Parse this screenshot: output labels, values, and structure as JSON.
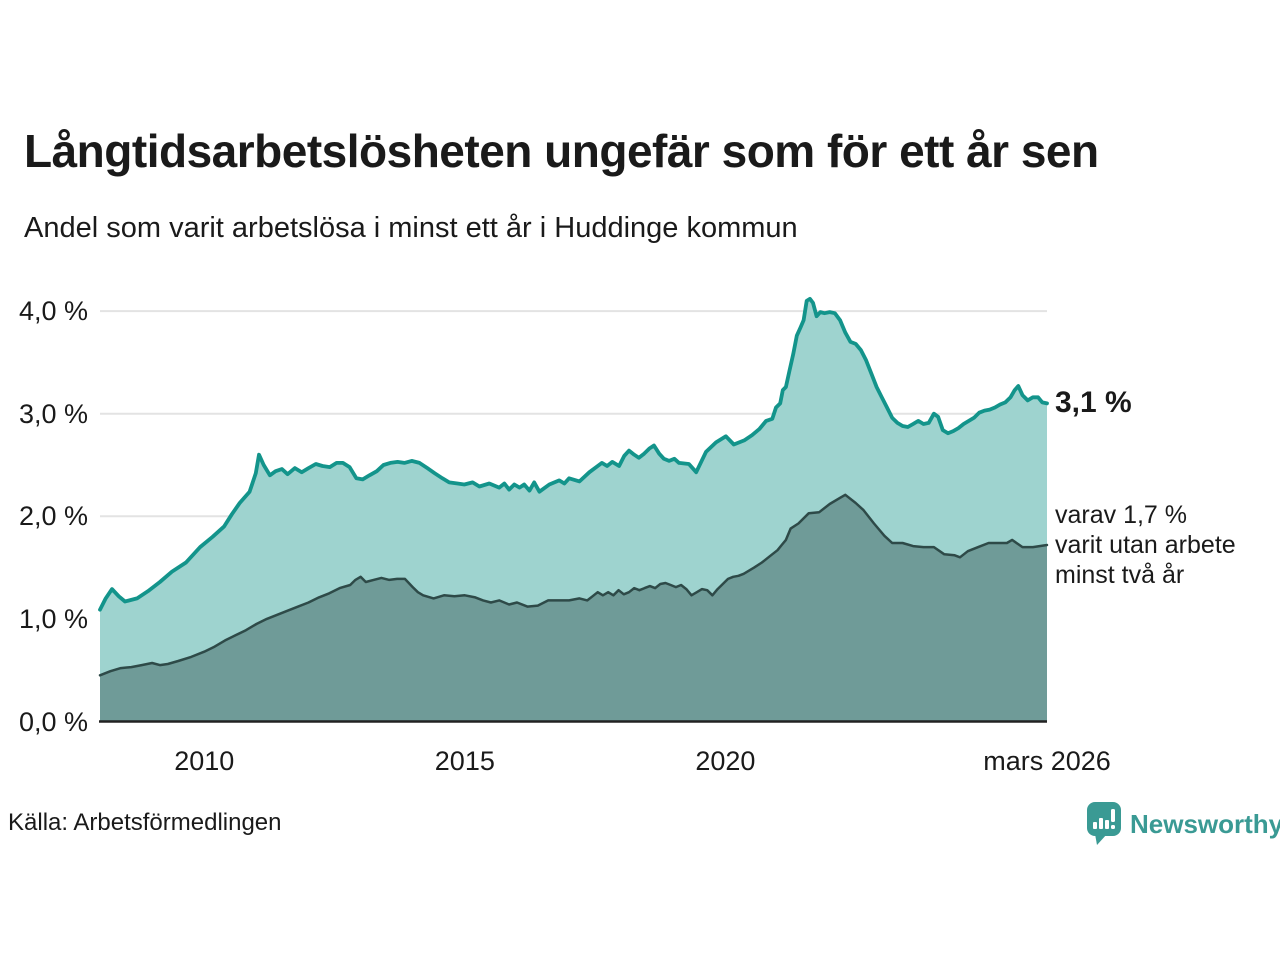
{
  "header": {
    "title": "Långtidsarbetslösheten ungefär som för ett år sen",
    "subtitle": "Andel som varit arbetslösa i minst ett år i Huddinge kommun"
  },
  "annotations": {
    "total_end_label": "3,1 %",
    "two_year_line1": "varav 1,7 %",
    "two_year_line2": "varit utan arbete",
    "two_year_line3": "minst två år"
  },
  "footer": {
    "source": "Källa: Arbetsförmedlingen",
    "brand": "Newsworthy",
    "brand_icon": "bar-chart-speech-bubble"
  },
  "colors": {
    "total_line": "#13948b",
    "total_fill": "#9ed3cf",
    "two_year_line": "#2e4a48",
    "two_year_fill": "#6f9b98",
    "grid": "#e3e3e3",
    "axis": "#222222",
    "text": "#1a1a1a",
    "brand_teal": "#3a9a94"
  },
  "chart_data": {
    "type": "area",
    "title": "Långtidsarbetslösheten ungefär som för ett år sen",
    "subtitle": "Andel som varit arbetslösa i minst ett år i Huddinge kommun",
    "xlabel": "",
    "ylabel": "",
    "unit": "%",
    "grid": true,
    "legend_position": "direct-labels-right",
    "x_domain": [
      2008.0,
      2026.17
    ],
    "ylim": [
      0,
      4.3
    ],
    "y_ticks": [
      {
        "value": 0,
        "label": "0,0 %"
      },
      {
        "value": 1,
        "label": "1,0 %"
      },
      {
        "value": 2,
        "label": "2,0 %"
      },
      {
        "value": 3,
        "label": "3,0 %"
      },
      {
        "value": 4,
        "label": "4,0 %"
      }
    ],
    "x_ticks": [
      {
        "value": 2010,
        "label": "2010"
      },
      {
        "value": 2015,
        "label": "2015"
      },
      {
        "value": 2020,
        "label": "2020"
      },
      {
        "value": 2026.17,
        "label": "mars 2026"
      }
    ],
    "series": [
      {
        "name": "Andel arbetslösa minst ett år",
        "end_value": 3.1,
        "points": [
          [
            2008.0,
            1.09
          ],
          [
            2008.11,
            1.2
          ],
          [
            2008.23,
            1.29
          ],
          [
            2008.36,
            1.22
          ],
          [
            2008.48,
            1.17
          ],
          [
            2008.71,
            1.2
          ],
          [
            2008.92,
            1.27
          ],
          [
            2009.15,
            1.36
          ],
          [
            2009.38,
            1.46
          ],
          [
            2009.65,
            1.55
          ],
          [
            2009.92,
            1.7
          ],
          [
            2010.16,
            1.8
          ],
          [
            2010.38,
            1.9
          ],
          [
            2010.53,
            2.02
          ],
          [
            2010.68,
            2.13
          ],
          [
            2010.87,
            2.24
          ],
          [
            2010.99,
            2.42
          ],
          [
            2011.05,
            2.6
          ],
          [
            2011.14,
            2.5
          ],
          [
            2011.26,
            2.4
          ],
          [
            2011.37,
            2.44
          ],
          [
            2011.49,
            2.46
          ],
          [
            2011.6,
            2.41
          ],
          [
            2011.74,
            2.47
          ],
          [
            2011.87,
            2.43
          ],
          [
            2012.0,
            2.47
          ],
          [
            2012.14,
            2.51
          ],
          [
            2012.27,
            2.49
          ],
          [
            2012.41,
            2.48
          ],
          [
            2012.54,
            2.52
          ],
          [
            2012.66,
            2.52
          ],
          [
            2012.79,
            2.48
          ],
          [
            2012.92,
            2.37
          ],
          [
            2013.04,
            2.36
          ],
          [
            2013.17,
            2.4
          ],
          [
            2013.31,
            2.44
          ],
          [
            2013.44,
            2.5
          ],
          [
            2013.57,
            2.52
          ],
          [
            2013.71,
            2.53
          ],
          [
            2013.84,
            2.52
          ],
          [
            2013.98,
            2.54
          ],
          [
            2014.13,
            2.52
          ],
          [
            2014.28,
            2.47
          ],
          [
            2014.42,
            2.42
          ],
          [
            2014.57,
            2.37
          ],
          [
            2014.7,
            2.33
          ],
          [
            2014.86,
            2.32
          ],
          [
            2014.99,
            2.31
          ],
          [
            2015.15,
            2.33
          ],
          [
            2015.28,
            2.29
          ],
          [
            2015.47,
            2.32
          ],
          [
            2015.66,
            2.28
          ],
          [
            2015.76,
            2.32
          ],
          [
            2015.85,
            2.26
          ],
          [
            2015.95,
            2.31
          ],
          [
            2016.05,
            2.28
          ],
          [
            2016.14,
            2.31
          ],
          [
            2016.24,
            2.25
          ],
          [
            2016.33,
            2.33
          ],
          [
            2016.43,
            2.24
          ],
          [
            2016.62,
            2.31
          ],
          [
            2016.81,
            2.35
          ],
          [
            2016.91,
            2.32
          ],
          [
            2017.0,
            2.37
          ],
          [
            2017.2,
            2.34
          ],
          [
            2017.39,
            2.43
          ],
          [
            2017.52,
            2.48
          ],
          [
            2017.63,
            2.52
          ],
          [
            2017.73,
            2.49
          ],
          [
            2017.83,
            2.53
          ],
          [
            2017.96,
            2.49
          ],
          [
            2018.06,
            2.59
          ],
          [
            2018.15,
            2.64
          ],
          [
            2018.25,
            2.6
          ],
          [
            2018.34,
            2.57
          ],
          [
            2018.44,
            2.61
          ],
          [
            2018.54,
            2.66
          ],
          [
            2018.63,
            2.69
          ],
          [
            2018.73,
            2.61
          ],
          [
            2018.82,
            2.56
          ],
          [
            2018.92,
            2.54
          ],
          [
            2019.02,
            2.56
          ],
          [
            2019.11,
            2.52
          ],
          [
            2019.3,
            2.51
          ],
          [
            2019.44,
            2.43
          ],
          [
            2019.63,
            2.63
          ],
          [
            2019.82,
            2.72
          ],
          [
            2020.01,
            2.78
          ],
          [
            2020.16,
            2.7
          ],
          [
            2020.36,
            2.74
          ],
          [
            2020.51,
            2.79
          ],
          [
            2020.65,
            2.85
          ],
          [
            2020.78,
            2.93
          ],
          [
            2020.9,
            2.95
          ],
          [
            2020.97,
            3.06
          ],
          [
            2021.05,
            3.1
          ],
          [
            2021.1,
            3.23
          ],
          [
            2021.16,
            3.26
          ],
          [
            2021.23,
            3.42
          ],
          [
            2021.3,
            3.58
          ],
          [
            2021.37,
            3.76
          ],
          [
            2021.44,
            3.84
          ],
          [
            2021.5,
            3.91
          ],
          [
            2021.56,
            4.1
          ],
          [
            2021.62,
            4.12
          ],
          [
            2021.68,
            4.08
          ],
          [
            2021.75,
            3.95
          ],
          [
            2021.82,
            3.99
          ],
          [
            2021.9,
            3.98
          ],
          [
            2022.0,
            3.99
          ],
          [
            2022.1,
            3.98
          ],
          [
            2022.2,
            3.91
          ],
          [
            2022.3,
            3.79
          ],
          [
            2022.4,
            3.7
          ],
          [
            2022.5,
            3.68
          ],
          [
            2022.6,
            3.62
          ],
          [
            2022.7,
            3.52
          ],
          [
            2022.8,
            3.39
          ],
          [
            2022.9,
            3.26
          ],
          [
            2023.0,
            3.16
          ],
          [
            2023.1,
            3.06
          ],
          [
            2023.2,
            2.96
          ],
          [
            2023.3,
            2.91
          ],
          [
            2023.4,
            2.88
          ],
          [
            2023.5,
            2.87
          ],
          [
            2023.6,
            2.9
          ],
          [
            2023.7,
            2.93
          ],
          [
            2023.8,
            2.9
          ],
          [
            2023.9,
            2.91
          ],
          [
            2024.0,
            3.0
          ],
          [
            2024.08,
            2.97
          ],
          [
            2024.17,
            2.84
          ],
          [
            2024.27,
            2.81
          ],
          [
            2024.37,
            2.83
          ],
          [
            2024.47,
            2.86
          ],
          [
            2024.57,
            2.9
          ],
          [
            2024.67,
            2.93
          ],
          [
            2024.77,
            2.96
          ],
          [
            2024.87,
            3.01
          ],
          [
            2024.97,
            3.03
          ],
          [
            2025.07,
            3.04
          ],
          [
            2025.17,
            3.06
          ],
          [
            2025.27,
            3.09
          ],
          [
            2025.37,
            3.11
          ],
          [
            2025.47,
            3.16
          ],
          [
            2025.55,
            3.23
          ],
          [
            2025.62,
            3.27
          ],
          [
            2025.7,
            3.18
          ],
          [
            2025.8,
            3.13
          ],
          [
            2025.9,
            3.16
          ],
          [
            2026.0,
            3.16
          ],
          [
            2026.08,
            3.11
          ],
          [
            2026.17,
            3.1
          ]
        ]
      },
      {
        "name": "varav utan arbete minst två år",
        "end_value": 1.7,
        "points": [
          [
            2008.0,
            0.45
          ],
          [
            2008.2,
            0.49
          ],
          [
            2008.4,
            0.52
          ],
          [
            2008.6,
            0.53
          ],
          [
            2008.8,
            0.55
          ],
          [
            2009.0,
            0.57
          ],
          [
            2009.15,
            0.55
          ],
          [
            2009.3,
            0.56
          ],
          [
            2009.5,
            0.59
          ],
          [
            2009.75,
            0.63
          ],
          [
            2010.0,
            0.68
          ],
          [
            2010.2,
            0.73
          ],
          [
            2010.4,
            0.79
          ],
          [
            2010.6,
            0.84
          ],
          [
            2010.8,
            0.89
          ],
          [
            2011.0,
            0.95
          ],
          [
            2011.2,
            1.0
          ],
          [
            2011.4,
            1.04
          ],
          [
            2011.6,
            1.08
          ],
          [
            2011.8,
            1.12
          ],
          [
            2012.0,
            1.16
          ],
          [
            2012.2,
            1.21
          ],
          [
            2012.4,
            1.25
          ],
          [
            2012.6,
            1.3
          ],
          [
            2012.8,
            1.33
          ],
          [
            2012.9,
            1.38
          ],
          [
            2013.0,
            1.41
          ],
          [
            2013.1,
            1.36
          ],
          [
            2013.25,
            1.38
          ],
          [
            2013.4,
            1.4
          ],
          [
            2013.55,
            1.38
          ],
          [
            2013.7,
            1.39
          ],
          [
            2013.85,
            1.39
          ],
          [
            2014.0,
            1.31
          ],
          [
            2014.1,
            1.26
          ],
          [
            2014.2,
            1.23
          ],
          [
            2014.4,
            1.2
          ],
          [
            2014.6,
            1.23
          ],
          [
            2014.8,
            1.22
          ],
          [
            2015.0,
            1.23
          ],
          [
            2015.2,
            1.21
          ],
          [
            2015.35,
            1.18
          ],
          [
            2015.5,
            1.16
          ],
          [
            2015.66,
            1.18
          ],
          [
            2015.85,
            1.14
          ],
          [
            2016.0,
            1.16
          ],
          [
            2016.2,
            1.12
          ],
          [
            2016.4,
            1.13
          ],
          [
            2016.6,
            1.18
          ],
          [
            2016.8,
            1.18
          ],
          [
            2017.0,
            1.18
          ],
          [
            2017.2,
            1.2
          ],
          [
            2017.35,
            1.18
          ],
          [
            2017.45,
            1.22
          ],
          [
            2017.55,
            1.26
          ],
          [
            2017.65,
            1.23
          ],
          [
            2017.75,
            1.26
          ],
          [
            2017.85,
            1.23
          ],
          [
            2017.95,
            1.28
          ],
          [
            2018.05,
            1.24
          ],
          [
            2018.15,
            1.26
          ],
          [
            2018.25,
            1.3
          ],
          [
            2018.35,
            1.28
          ],
          [
            2018.45,
            1.3
          ],
          [
            2018.55,
            1.32
          ],
          [
            2018.65,
            1.3
          ],
          [
            2018.75,
            1.34
          ],
          [
            2018.85,
            1.35
          ],
          [
            2018.95,
            1.33
          ],
          [
            2019.05,
            1.31
          ],
          [
            2019.15,
            1.33
          ],
          [
            2019.25,
            1.29
          ],
          [
            2019.35,
            1.23
          ],
          [
            2019.45,
            1.26
          ],
          [
            2019.55,
            1.29
          ],
          [
            2019.65,
            1.28
          ],
          [
            2019.75,
            1.23
          ],
          [
            2019.85,
            1.29
          ],
          [
            2019.95,
            1.34
          ],
          [
            2020.05,
            1.39
          ],
          [
            2020.15,
            1.41
          ],
          [
            2020.25,
            1.42
          ],
          [
            2020.35,
            1.44
          ],
          [
            2020.45,
            1.47
          ],
          [
            2020.55,
            1.5
          ],
          [
            2020.7,
            1.55
          ],
          [
            2020.85,
            1.61
          ],
          [
            2021.0,
            1.67
          ],
          [
            2021.08,
            1.72
          ],
          [
            2021.16,
            1.77
          ],
          [
            2021.25,
            1.88
          ],
          [
            2021.4,
            1.93
          ],
          [
            2021.6,
            2.03
          ],
          [
            2021.8,
            2.04
          ],
          [
            2022.0,
            2.12
          ],
          [
            2022.2,
            2.18
          ],
          [
            2022.3,
            2.21
          ],
          [
            2022.5,
            2.13
          ],
          [
            2022.65,
            2.06
          ],
          [
            2022.85,
            1.93
          ],
          [
            2023.05,
            1.81
          ],
          [
            2023.2,
            1.74
          ],
          [
            2023.4,
            1.74
          ],
          [
            2023.6,
            1.71
          ],
          [
            2023.8,
            1.7
          ],
          [
            2024.0,
            1.7
          ],
          [
            2024.2,
            1.63
          ],
          [
            2024.4,
            1.62
          ],
          [
            2024.5,
            1.6
          ],
          [
            2024.65,
            1.66
          ],
          [
            2024.85,
            1.7
          ],
          [
            2025.05,
            1.74
          ],
          [
            2025.25,
            1.74
          ],
          [
            2025.4,
            1.74
          ],
          [
            2025.5,
            1.77
          ],
          [
            2025.7,
            1.7
          ],
          [
            2025.9,
            1.7
          ],
          [
            2026.17,
            1.72
          ]
        ]
      }
    ]
  }
}
